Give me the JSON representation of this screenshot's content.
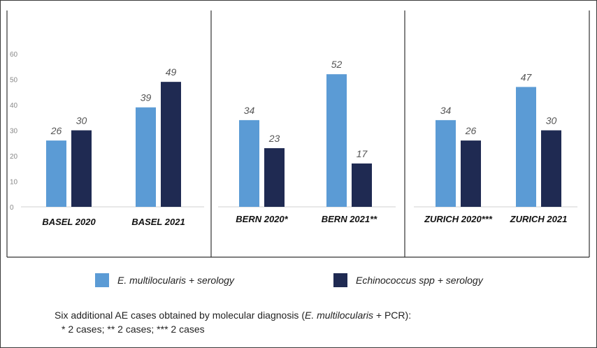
{
  "colors": {
    "light": "#5b9bd5",
    "dark": "#1f2a52",
    "label": "#555555",
    "axis": "#d0d0d0",
    "tick": "#888888"
  },
  "legend": {
    "items": [
      {
        "name": "E. multilocularis + serology",
        "color": "#5b9bd5"
      },
      {
        "name": "Echinococcus spp + serology",
        "color": "#1f2a52"
      }
    ]
  },
  "footnote": {
    "prefix": "Six additional AE cases obtained  by molecular diagnosis (",
    "italic": "E. multilocularis",
    "suffix": " + PCR):",
    "line2": "* 2 cases; ** 2 cases; *** 2 cases"
  },
  "chart_data": [
    {
      "type": "bar",
      "categories": [
        "BASEL 2020",
        "BASEL  2021"
      ],
      "series": [
        {
          "name": "E. multilocularis + serology",
          "values": [
            26,
            39
          ]
        },
        {
          "name": "Echinococcus spp + serology",
          "values": [
            30,
            49
          ]
        }
      ],
      "ylim": [
        0,
        60
      ],
      "yticks": [
        0,
        10,
        20,
        30,
        40,
        50,
        60
      ]
    },
    {
      "type": "bar",
      "categories": [
        "BERN 2020*",
        "BERN 2021**"
      ],
      "series": [
        {
          "name": "E. multilocularis + serology",
          "values": [
            34,
            52
          ]
        },
        {
          "name": "Echinococcus spp + serology",
          "values": [
            23,
            17
          ]
        }
      ],
      "ylim": [
        0,
        60
      ]
    },
    {
      "type": "bar",
      "categories": [
        "ZURICH 2020***",
        "ZURICH 2021"
      ],
      "series": [
        {
          "name": "E. multilocularis + serology",
          "values": [
            34,
            47
          ]
        },
        {
          "name": "Echinococcus spp + serology",
          "values": [
            26,
            30
          ]
        }
      ],
      "ylim": [
        0,
        60
      ]
    }
  ]
}
